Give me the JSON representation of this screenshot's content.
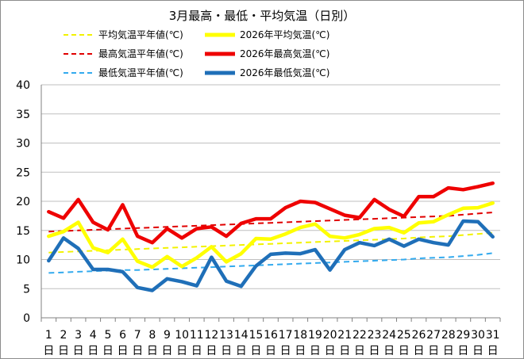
{
  "chart_data": {
    "type": "line",
    "title": "3月最高・最低・平均気温（日別）",
    "xlabel": "",
    "ylabel": "",
    "ylim": [
      0,
      40
    ],
    "yticks": [
      0,
      5,
      10,
      15,
      20,
      25,
      30,
      35,
      40
    ],
    "x": [
      1,
      2,
      3,
      4,
      5,
      6,
      7,
      8,
      9,
      10,
      11,
      12,
      13,
      14,
      15,
      16,
      17,
      18,
      19,
      20,
      21,
      22,
      23,
      24,
      25,
      26,
      27,
      28,
      29,
      30,
      31
    ],
    "x_suffix": "日",
    "grid": "horizontal",
    "legend_position": "top",
    "series": [
      {
        "name": "平均気温平年値(℃)",
        "style": "dashed",
        "color": "#f2f200",
        "values": [
          11.2,
          11.3,
          11.4,
          11.5,
          11.6,
          11.7,
          11.8,
          11.9,
          12.0,
          12.1,
          12.2,
          12.3,
          12.4,
          12.5,
          12.6,
          12.7,
          12.8,
          12.9,
          13.0,
          13.1,
          13.2,
          13.3,
          13.4,
          13.5,
          13.6,
          13.8,
          13.9,
          14.0,
          14.2,
          14.4,
          14.6
        ]
      },
      {
        "name": "2026年平均気温(℃)",
        "style": "solid",
        "color": "#ffff00",
        "values": [
          14.0,
          14.8,
          16.4,
          12.0,
          11.2,
          13.5,
          9.7,
          8.7,
          10.5,
          8.8,
          10.3,
          12.2,
          9.6,
          11.0,
          13.6,
          13.5,
          14.4,
          15.5,
          16.1,
          14.0,
          13.7,
          14.3,
          15.3,
          15.5,
          14.6,
          16.3,
          16.5,
          17.7,
          18.8,
          18.9,
          19.7
        ]
      },
      {
        "name": "最高気温平年値(℃)",
        "style": "dashed",
        "color": "#e00000",
        "values": [
          14.8,
          14.9,
          15.0,
          15.1,
          15.2,
          15.3,
          15.4,
          15.5,
          15.6,
          15.7,
          15.8,
          15.9,
          16.0,
          16.1,
          16.2,
          16.3,
          16.4,
          16.5,
          16.6,
          16.7,
          16.8,
          16.9,
          17.0,
          17.1,
          17.2,
          17.3,
          17.4,
          17.5,
          17.7,
          17.9,
          18.1
        ]
      },
      {
        "name": "2026年最高気温(℃)",
        "style": "solid",
        "color": "#ee0000",
        "values": [
          18.2,
          17.1,
          20.3,
          16.4,
          15.1,
          19.4,
          14.0,
          12.9,
          15.3,
          13.7,
          15.3,
          15.6,
          14.0,
          16.2,
          17.0,
          17.0,
          18.9,
          20.0,
          19.8,
          18.7,
          17.6,
          17.2,
          20.3,
          18.6,
          17.4,
          20.8,
          20.8,
          22.3,
          22.0,
          22.5,
          23.1
        ]
      },
      {
        "name": "最低気温平年値(℃)",
        "style": "dashed",
        "color": "#33aaee",
        "values": [
          7.7,
          7.8,
          7.9,
          8.0,
          8.1,
          8.2,
          8.2,
          8.3,
          8.4,
          8.5,
          8.6,
          8.7,
          8.8,
          8.9,
          9.0,
          9.1,
          9.2,
          9.3,
          9.4,
          9.5,
          9.6,
          9.7,
          9.8,
          9.9,
          10.0,
          10.2,
          10.3,
          10.4,
          10.6,
          10.8,
          11.1
        ]
      },
      {
        "name": "2026年最低気温(℃)",
        "style": "solid",
        "color": "#1f6fb8",
        "values": [
          9.8,
          13.7,
          11.9,
          8.3,
          8.3,
          7.9,
          5.2,
          4.7,
          6.7,
          6.2,
          5.5,
          10.4,
          6.3,
          5.4,
          8.9,
          10.9,
          11.1,
          11.0,
          11.7,
          8.2,
          11.7,
          12.9,
          12.4,
          13.5,
          12.3,
          13.5,
          12.9,
          12.5,
          16.6,
          16.5,
          13.9
        ]
      }
    ]
  },
  "colors": {
    "grid": "#bfbfbf",
    "axis": "#808080",
    "border": "#8c8c8c"
  }
}
